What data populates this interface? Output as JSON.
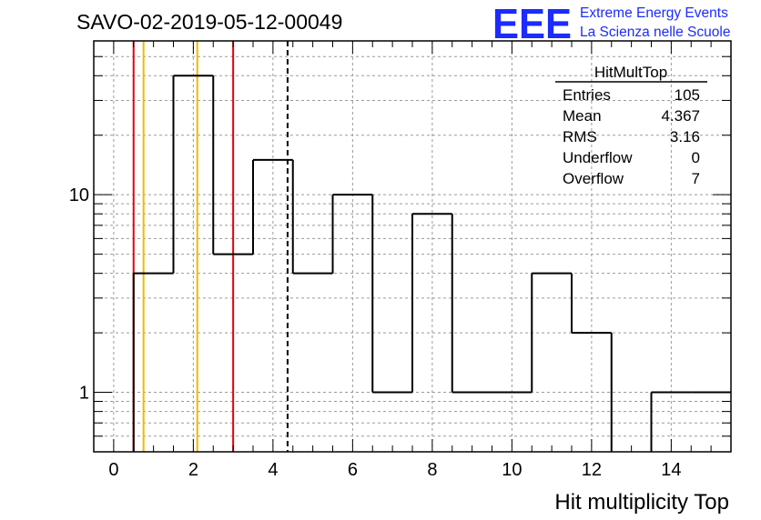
{
  "chart_data": {
    "type": "bar",
    "subtype": "histogram",
    "title": "SAVO-02-2019-05-12-00049",
    "xlabel": "Hit multiplicity Top",
    "ylabel": "",
    "yscale": "log",
    "xlim": [
      -0.5,
      15.5
    ],
    "ylim": [
      0.5,
      60
    ],
    "grid": true,
    "x_ticks": [
      0,
      2,
      4,
      6,
      8,
      10,
      12,
      14
    ],
    "y_ticks": [
      1,
      10
    ],
    "y_tick_labels": [
      "1",
      "10"
    ],
    "bin_width": 1,
    "bins": [
      {
        "low": 0.5,
        "high": 1.5,
        "count": 4
      },
      {
        "low": 1.5,
        "high": 2.5,
        "count": 40
      },
      {
        "low": 2.5,
        "high": 3.5,
        "count": 5
      },
      {
        "low": 3.5,
        "high": 4.5,
        "count": 15
      },
      {
        "low": 4.5,
        "high": 5.5,
        "count": 4
      },
      {
        "low": 5.5,
        "high": 6.5,
        "count": 10
      },
      {
        "low": 6.5,
        "high": 7.5,
        "count": 1
      },
      {
        "low": 7.5,
        "high": 8.5,
        "count": 8
      },
      {
        "low": 8.5,
        "high": 9.5,
        "count": 1
      },
      {
        "low": 9.5,
        "high": 10.5,
        "count": 1
      },
      {
        "low": 10.5,
        "high": 11.5,
        "count": 4
      },
      {
        "low": 11.5,
        "high": 12.5,
        "count": 2
      },
      {
        "low": 12.5,
        "high": 13.5,
        "count": 0
      },
      {
        "low": 13.5,
        "high": 14.5,
        "count": 1
      },
      {
        "low": 14.5,
        "high": 15.5,
        "count": 1
      }
    ],
    "reference_lines": [
      {
        "name": "red-left",
        "x": 0.5,
        "color": "#e8000b",
        "style": "solid"
      },
      {
        "name": "orange-left",
        "x": 0.75,
        "color": "#f5b800",
        "style": "solid"
      },
      {
        "name": "orange-right",
        "x": 2.1,
        "color": "#f5b800",
        "style": "solid"
      },
      {
        "name": "red-right",
        "x": 3.0,
        "color": "#e8000b",
        "style": "solid"
      },
      {
        "name": "mean",
        "x": 4.367,
        "color": "#000000",
        "style": "dashed"
      }
    ],
    "stats_box": {
      "name": "HitMultTop",
      "rows": [
        {
          "label": "Entries",
          "value": "105"
        },
        {
          "label": "Mean",
          "value": "4.367"
        },
        {
          "label": "RMS",
          "value": "3.16"
        },
        {
          "label": "Underflow",
          "value": "0"
        },
        {
          "label": "Overflow",
          "value": "7"
        }
      ]
    }
  },
  "logo": {
    "mark": "EEE",
    "line1": "Extreme Energy Events",
    "line2": "La Scienza nelle Scuole",
    "color": "#1c2bff"
  }
}
